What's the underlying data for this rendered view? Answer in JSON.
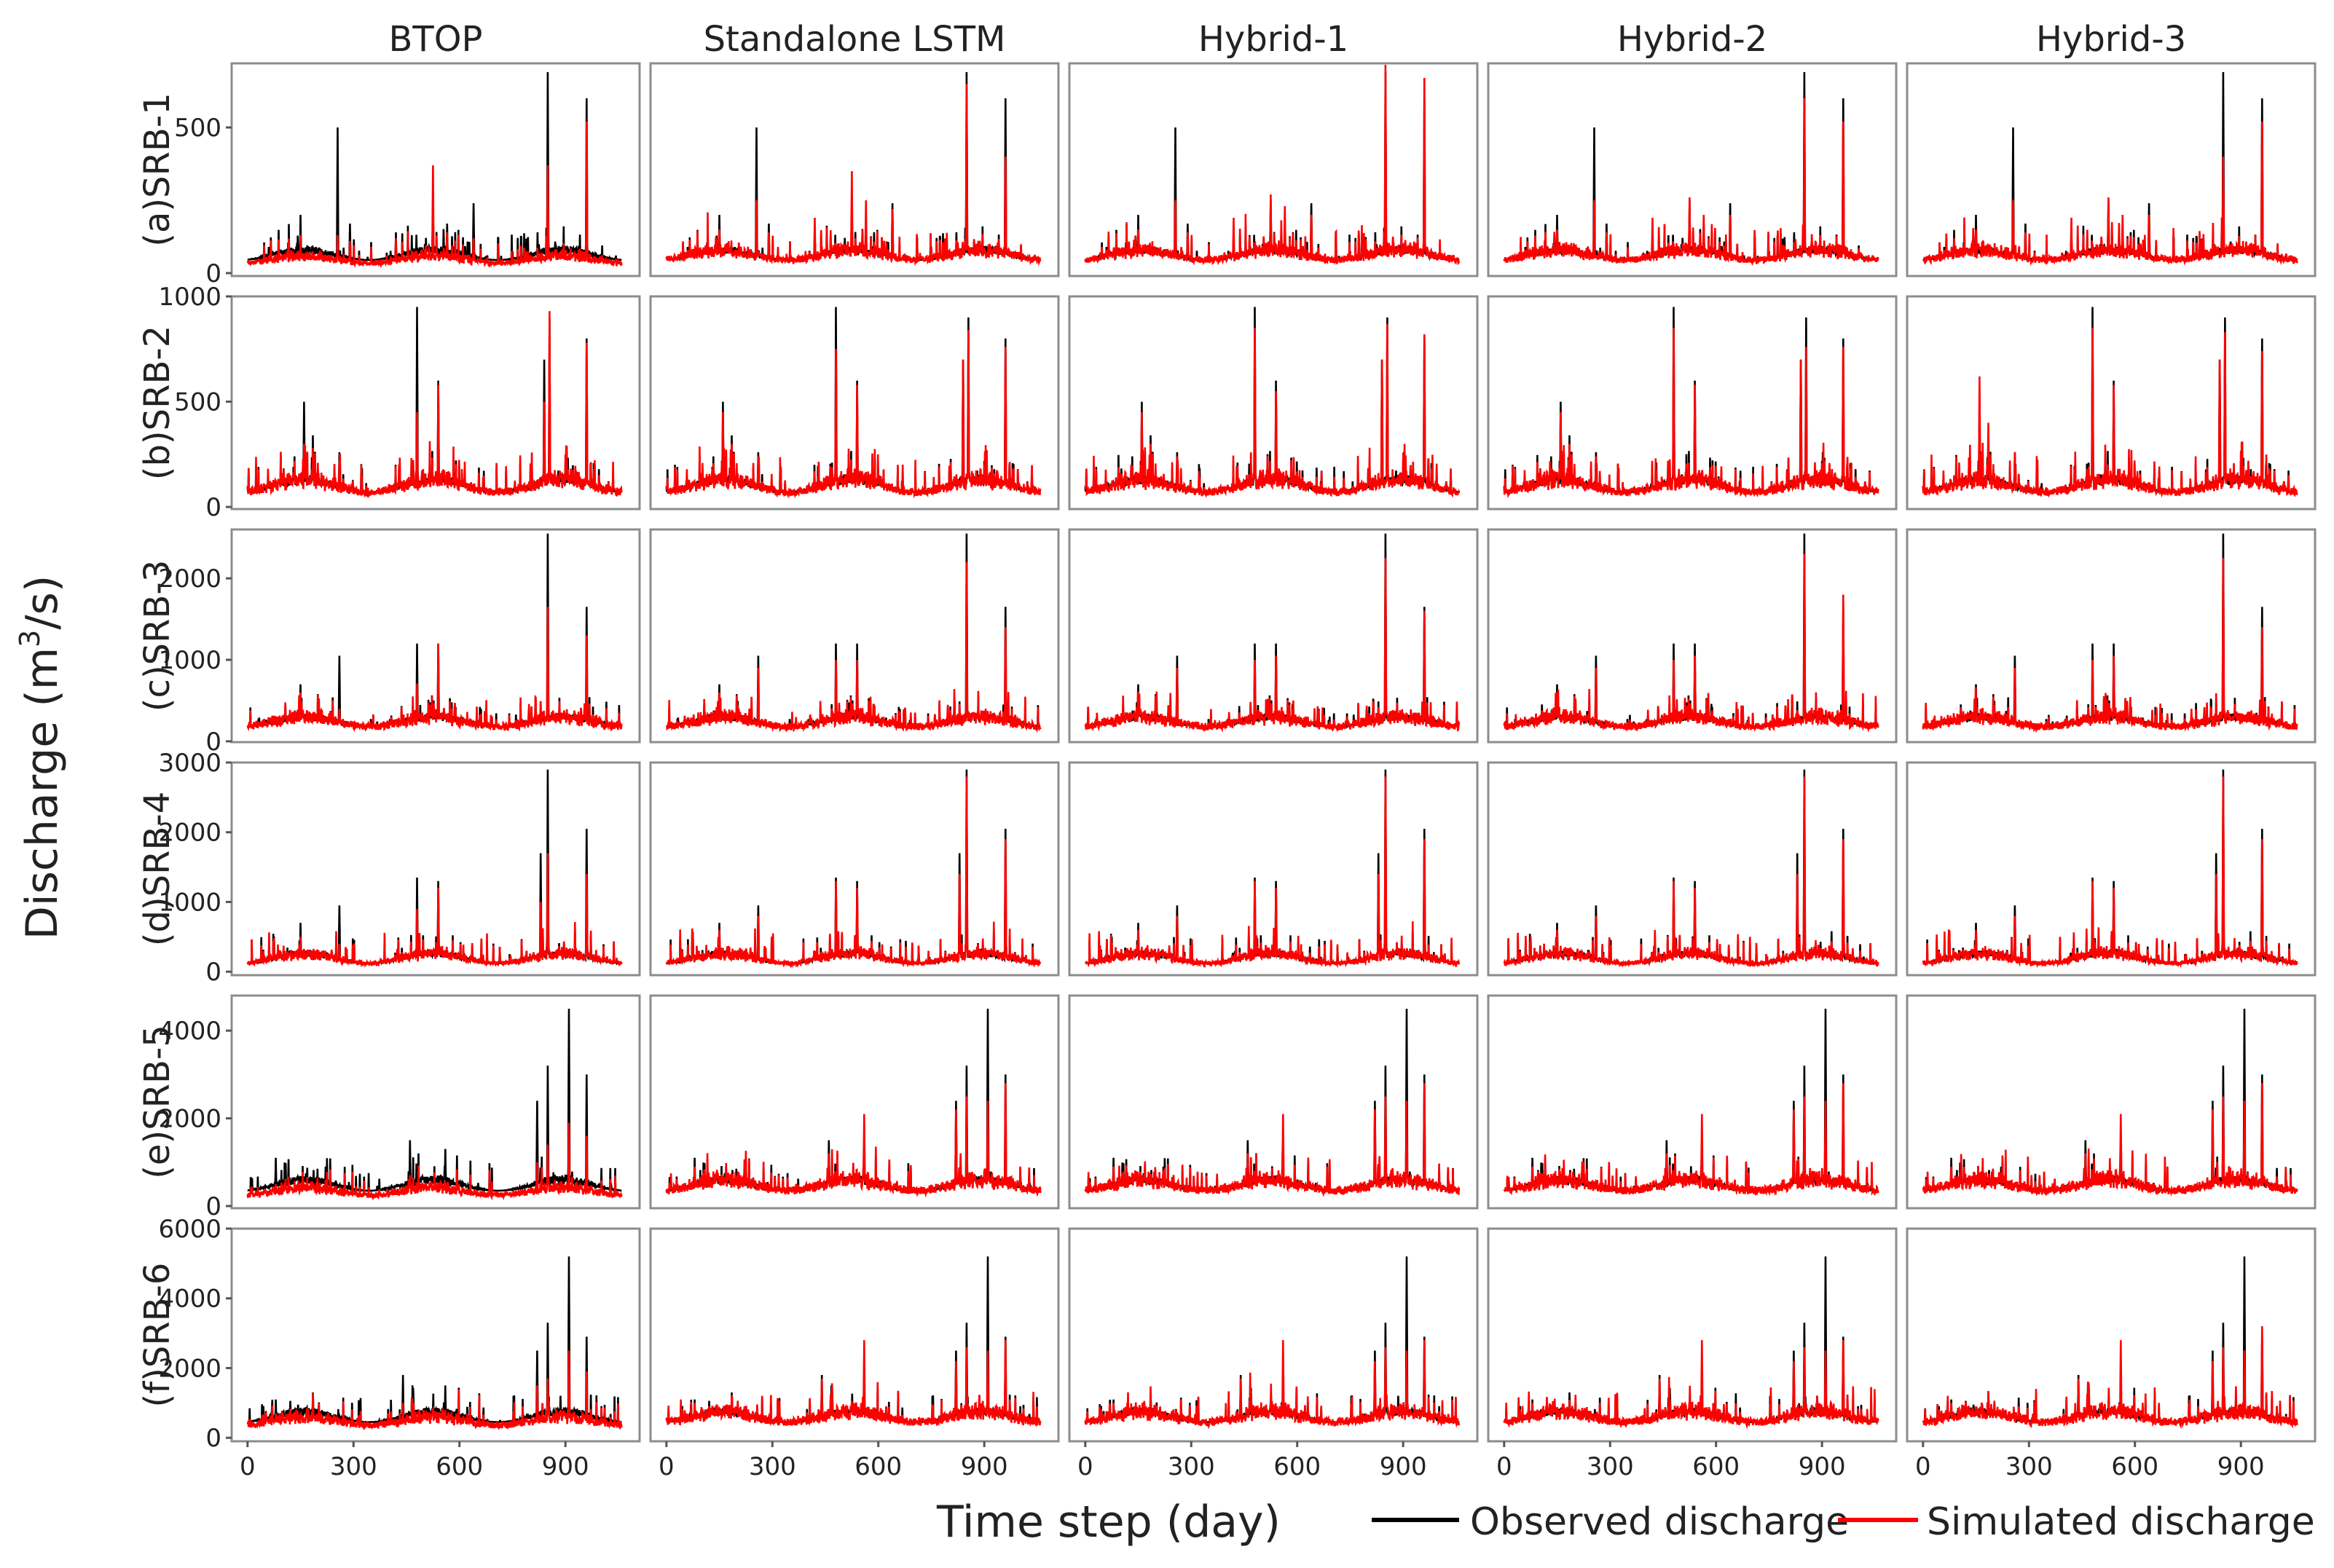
{
  "figure": {
    "y_label_main": "Discharge (m",
    "y_label_sup": "3",
    "y_label_tail": "/s)",
    "x_label": "Time step (day)",
    "legend": [
      {
        "label": "Observed discharge",
        "color": "#000000"
      },
      {
        "label": "Simulated discharge",
        "color": "#ff0000"
      }
    ],
    "column_titles": [
      "BTOP",
      "Standalone LSTM",
      "Hybrid-1",
      "Hybrid-2",
      "Hybrid-3"
    ],
    "row_labels": [
      "(a)SRB-1",
      "(b)SRB-2",
      "(c)SRB-3",
      "(d)SRB-4",
      "(e)SRB-5",
      "(f)SRB-6"
    ],
    "x_ticks": [
      0,
      300,
      600,
      900
    ],
    "x_tick_labels": [
      "0",
      "300",
      "600",
      "900"
    ],
    "x_range": [
      -45,
      1110
    ],
    "rows_y": [
      {
        "ylim": [
          -10,
          720
        ],
        "ticks": [
          0,
          500
        ],
        "tick_labels": [
          "0",
          "500"
        ]
      },
      {
        "ylim": [
          -10,
          1000
        ],
        "ticks": [
          0,
          500,
          1000
        ],
        "tick_labels": [
          "0",
          "500",
          "1000"
        ]
      },
      {
        "ylim": [
          -10,
          2600
        ],
        "ticks": [
          0,
          1000,
          2000
        ],
        "tick_labels": [
          "0",
          "1000",
          "2000"
        ]
      },
      {
        "ylim": [
          -50,
          3000
        ],
        "ticks": [
          0,
          1000,
          2000,
          3000
        ],
        "tick_labels": [
          "0",
          "1000",
          "2000",
          "3000"
        ]
      },
      {
        "ylim": [
          -50,
          4800
        ],
        "ticks": [
          0,
          2000,
          4000
        ],
        "tick_labels": [
          "0",
          "2000",
          "4000"
        ]
      },
      {
        "ylim": [
          -100,
          6000
        ],
        "ticks": [
          0,
          2000,
          4000,
          6000
        ],
        "tick_labels": [
          "0",
          "2000",
          "4000",
          "6000"
        ]
      }
    ]
  },
  "chart_data": {
    "type": "line",
    "title": "",
    "xlabel": "Time step (day)",
    "ylabel": "Discharge (m3/s)",
    "grid": false,
    "legend_position": "bottom-right",
    "series_names": [
      "Observed discharge",
      "Simulated discharge"
    ],
    "n_days": 1060,
    "rows": [
      {
        "name": "(a)SRB-1",
        "base": 45,
        "baseline_amp": 35,
        "sim_base_scale": [
          0.75,
          1.0,
          1.0,
          1.0,
          1.0
        ],
        "peaks": [
          {
            "day": 60,
            "obs": 90,
            "sim": [
              55,
              80,
              80,
              80,
              80
            ]
          },
          {
            "day": 150,
            "obs": 200,
            "sim": [
              130,
              150,
              150,
              150,
              150
            ]
          },
          {
            "day": 255,
            "obs": 500,
            "sim": [
              130,
              250,
              250,
              250,
              250
            ]
          },
          {
            "day": 290,
            "obs": 170,
            "sim": [
              110,
              140,
              140,
              140,
              140
            ]
          },
          {
            "day": 420,
            "obs": 140,
            "sim": [
              120,
              190,
              190,
              190,
              190
            ]
          },
          {
            "day": 525,
            "obs": 250,
            "sim": [
              370,
              350,
              270,
              260,
              260
            ]
          },
          {
            "day": 565,
            "obs": 170,
            "sim": [
              140,
              250,
              230,
              200,
              200
            ]
          },
          {
            "day": 640,
            "obs": 240,
            "sim": [
              120,
              220,
              200,
              200,
              200
            ]
          },
          {
            "day": 850,
            "obs": 690,
            "sim": [
              370,
              650,
              720,
              600,
              400
            ]
          },
          {
            "day": 960,
            "obs": 600,
            "sim": [
              520,
              400,
              670,
              520,
              520
            ]
          }
        ]
      },
      {
        "name": "(b)SRB-2",
        "base": 70,
        "baseline_amp": 60,
        "sim_base_scale": [
          1.0,
          1.0,
          1.0,
          1.0,
          1.0
        ],
        "peaks": [
          {
            "day": 160,
            "obs": 500,
            "sim": [
              300,
              450,
              450,
              450,
              620
            ]
          },
          {
            "day": 185,
            "obs": 340,
            "sim": [
              280,
              300,
              300,
              300,
              400
            ]
          },
          {
            "day": 260,
            "obs": 260,
            "sim": [
              220,
              240,
              240,
              240,
              260
            ]
          },
          {
            "day": 480,
            "obs": 950,
            "sim": [
              450,
              750,
              850,
              850,
              850
            ]
          },
          {
            "day": 540,
            "obs": 600,
            "sim": [
              580,
              580,
              550,
              580,
              580
            ]
          },
          {
            "day": 840,
            "obs": 700,
            "sim": [
              500,
              700,
              700,
              700,
              700
            ]
          },
          {
            "day": 855,
            "obs": 900,
            "sim": [
              930,
              840,
              870,
              760,
              830
            ]
          },
          {
            "day": 960,
            "obs": 800,
            "sim": [
              780,
              760,
              820,
              760,
              740
            ]
          }
        ]
      },
      {
        "name": "(c)SRB-3",
        "base": 180,
        "baseline_amp": 120,
        "sim_base_scale": [
          1.0,
          1.0,
          1.0,
          1.0,
          1.0
        ],
        "peaks": [
          {
            "day": 150,
            "obs": 700,
            "sim": [
              600,
              600,
              600,
              600,
              600
            ]
          },
          {
            "day": 260,
            "obs": 1050,
            "sim": [
              400,
              900,
              900,
              900,
              900
            ]
          },
          {
            "day": 480,
            "obs": 1200,
            "sim": [
              700,
              1000,
              1000,
              1000,
              1000
            ]
          },
          {
            "day": 540,
            "obs": 1200,
            "sim": [
              1200,
              1000,
              1050,
              1050,
              1050
            ]
          },
          {
            "day": 850,
            "obs": 2550,
            "sim": [
              1650,
              2200,
              2250,
              2300,
              2250
            ]
          },
          {
            "day": 960,
            "obs": 1650,
            "sim": [
              1300,
              1400,
              1600,
              1800,
              1400
            ]
          }
        ]
      },
      {
        "name": "(d)SRB-4",
        "base": 120,
        "baseline_amp": 140,
        "sim_base_scale": [
          1.0,
          1.0,
          1.0,
          1.0,
          1.0
        ],
        "peaks": [
          {
            "day": 150,
            "obs": 700,
            "sim": [
              500,
              600,
              600,
              600,
              600
            ]
          },
          {
            "day": 260,
            "obs": 950,
            "sim": [
              400,
              800,
              800,
              800,
              800
            ]
          },
          {
            "day": 480,
            "obs": 1350,
            "sim": [
              900,
              1300,
              1300,
              1300,
              1300
            ]
          },
          {
            "day": 540,
            "obs": 1300,
            "sim": [
              1200,
              1200,
              1200,
              1200,
              1200
            ]
          },
          {
            "day": 830,
            "obs": 1700,
            "sim": [
              1000,
              1400,
              1400,
              1400,
              1400
            ]
          },
          {
            "day": 850,
            "obs": 2900,
            "sim": [
              1700,
              2800,
              2800,
              2800,
              2800
            ]
          },
          {
            "day": 960,
            "obs": 2050,
            "sim": [
              1400,
              1900,
              1900,
              1900,
              1900
            ]
          }
        ]
      },
      {
        "name": "(e)SRB-5",
        "base": 350,
        "baseline_amp": 250,
        "sim_base_scale": [
          0.7,
          1.0,
          1.0,
          1.0,
          1.0
        ],
        "peaks": [
          {
            "day": 80,
            "obs": 1100,
            "sim": [
              500,
              900,
              900,
              900,
              900
            ]
          },
          {
            "day": 460,
            "obs": 1500,
            "sim": [
              700,
              1200,
              1200,
              1200,
              1200
            ]
          },
          {
            "day": 560,
            "obs": 1300,
            "sim": [
              500,
              2100,
              2100,
              2100,
              2100
            ]
          },
          {
            "day": 820,
            "obs": 2400,
            "sim": [
              1000,
              2200,
              2200,
              2200,
              2200
            ]
          },
          {
            "day": 850,
            "obs": 3200,
            "sim": [
              1400,
              2500,
              2500,
              2500,
              2500
            ]
          },
          {
            "day": 910,
            "obs": 4500,
            "sim": [
              1900,
              2400,
              2400,
              2400,
              2400
            ]
          },
          {
            "day": 960,
            "obs": 3000,
            "sim": [
              1600,
              2800,
              2800,
              2800,
              2800
            ]
          }
        ]
      },
      {
        "name": "(f)SRB-6",
        "base": 450,
        "baseline_amp": 300,
        "sim_base_scale": [
          0.8,
          1.0,
          1.0,
          1.0,
          1.0
        ],
        "peaks": [
          {
            "day": 80,
            "obs": 1100,
            "sim": [
              700,
              1000,
              1000,
              1000,
              1000
            ]
          },
          {
            "day": 440,
            "obs": 1800,
            "sim": [
              1000,
              1700,
              1700,
              1700,
              1700
            ]
          },
          {
            "day": 560,
            "obs": 1500,
            "sim": [
              800,
              2800,
              2800,
              2800,
              2800
            ]
          },
          {
            "day": 820,
            "obs": 2500,
            "sim": [
              1500,
              2200,
              2200,
              2200,
              2200
            ]
          },
          {
            "day": 850,
            "obs": 3300,
            "sim": [
              1700,
              2600,
              2600,
              2600,
              2600
            ]
          },
          {
            "day": 910,
            "obs": 5200,
            "sim": [
              2500,
              2500,
              2500,
              2500,
              2500
            ]
          },
          {
            "day": 960,
            "obs": 2900,
            "sim": [
              1900,
              2800,
              2800,
              2800,
              3200
            ]
          }
        ]
      }
    ]
  }
}
